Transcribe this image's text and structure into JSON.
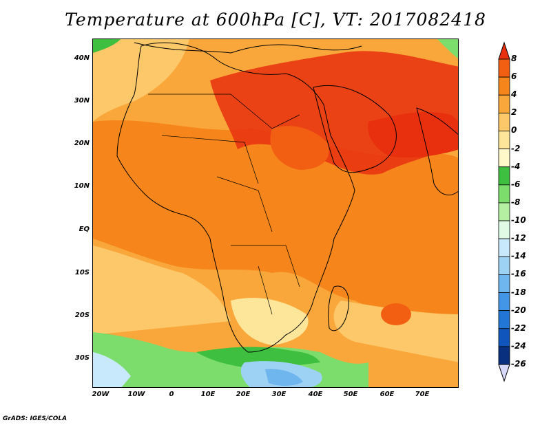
{
  "title": "Temperature at 600hPa [C], VT: 2017082418",
  "footer": "GrADS: IGES/COLA",
  "lat_labels": [
    "40N",
    "30N",
    "20N",
    "10N",
    "EQ",
    "10S",
    "20S",
    "30S"
  ],
  "lon_labels": [
    "20W",
    "10W",
    "0",
    "10E",
    "20E",
    "30E",
    "40E",
    "50E",
    "60E",
    "70E"
  ],
  "colorbar": {
    "labels": [
      "8",
      "6",
      "4",
      "2",
      "0",
      "-2",
      "-4",
      "-6",
      "-8",
      "-10",
      "-12",
      "-14",
      "-16",
      "-18",
      "-20",
      "-22",
      "-24",
      "-26"
    ],
    "colors": [
      "#e8300f",
      "#f25e12",
      "#f6861b",
      "#f9a73b",
      "#fcc869",
      "#fde59a",
      "#fff8c8",
      "#3fbf3f",
      "#7ddd6c",
      "#b4efa2",
      "#e0fae5",
      "#c8e9fb",
      "#9ed2f5",
      "#6fb5ee",
      "#4395e6",
      "#2176d6",
      "#1055bb",
      "#08307f",
      "#141466"
    ]
  },
  "map": {
    "extent": "20W–80E, 37S–45N",
    "dominant_colors": {
      "hot": "#e85a12",
      "warm": "#f6861b",
      "mild": "#f9a73b",
      "cool": "#fcc869",
      "cold_green": "#58c858",
      "very_cold": "#9ed2f5"
    }
  }
}
